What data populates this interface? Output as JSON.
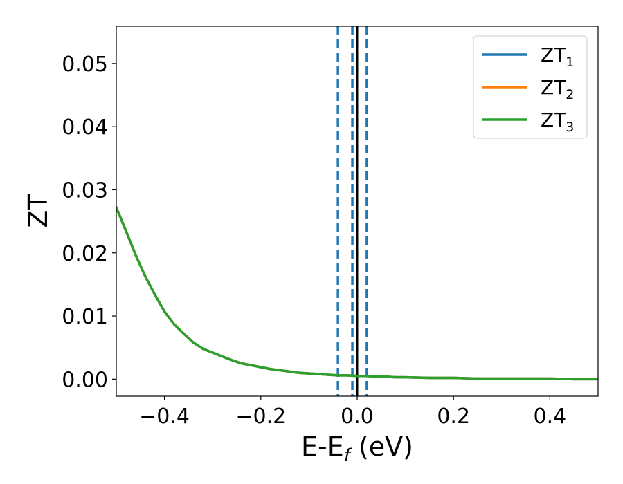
{
  "chart_data": {
    "type": "line",
    "xlabel": "E-E",
    "xlabel_sub": "f",
    "xlabel_unit": " (eV)",
    "ylabel": "ZT",
    "xlim": [
      -0.5,
      0.5
    ],
    "ylim": [
      -0.0027,
      0.0559
    ],
    "xticks": [
      -0.4,
      -0.2,
      0.0,
      0.2,
      0.4
    ],
    "xtick_labels": [
      "−0.4",
      "−0.2",
      "0.0",
      "0.2",
      "0.4"
    ],
    "yticks": [
      0.0,
      0.01,
      0.02,
      0.03,
      0.04,
      0.05
    ],
    "ytick_labels": [
      "0.00",
      "0.01",
      "0.02",
      "0.03",
      "0.04",
      "0.05"
    ],
    "grid": false,
    "legend_position": "top-right",
    "x": [
      -0.5,
      -0.48,
      -0.46,
      -0.44,
      -0.42,
      -0.4,
      -0.38,
      -0.36,
      -0.34,
      -0.32,
      -0.3,
      -0.28,
      -0.26,
      -0.24,
      -0.22,
      -0.2,
      -0.18,
      -0.16,
      -0.14,
      -0.12,
      -0.1,
      -0.08,
      -0.06,
      -0.04,
      -0.02,
      0.0,
      0.02,
      0.04,
      0.06,
      0.08,
      0.1,
      0.15,
      0.2,
      0.25,
      0.3,
      0.35,
      0.4,
      0.45,
      0.5
    ],
    "series": [
      {
        "base": "ZT",
        "sub": "1",
        "color": "#1f77b4",
        "values": [
          0.0272,
          0.0235,
          0.0197,
          0.0163,
          0.0134,
          0.0107,
          0.0087,
          0.0072,
          0.0058,
          0.0048,
          0.0042,
          0.0036,
          0.003,
          0.0025,
          0.0022,
          0.0019,
          0.0016,
          0.0014,
          0.0012,
          0.001,
          0.0009,
          0.0008,
          0.0007,
          0.0006,
          0.0006,
          0.0005,
          0.0005,
          0.0004,
          0.0004,
          0.0003,
          0.0003,
          0.0002,
          0.0002,
          0.0001,
          0.0001,
          0.0001,
          0.0001,
          0.0,
          0.0
        ]
      },
      {
        "base": "ZT",
        "sub": "2",
        "color": "#ff7f0e",
        "values": [
          0.0272,
          0.0235,
          0.0197,
          0.0163,
          0.0134,
          0.0107,
          0.0087,
          0.0072,
          0.0058,
          0.0048,
          0.0042,
          0.0036,
          0.003,
          0.0025,
          0.0022,
          0.0019,
          0.0016,
          0.0014,
          0.0012,
          0.001,
          0.0009,
          0.0008,
          0.0007,
          0.0006,
          0.0006,
          0.0005,
          0.0005,
          0.0004,
          0.0004,
          0.0003,
          0.0003,
          0.0002,
          0.0002,
          0.0001,
          0.0001,
          0.0001,
          0.0001,
          0.0,
          0.0
        ]
      },
      {
        "base": "ZT",
        "sub": "3",
        "color": "#2ca02c",
        "values": [
          0.0272,
          0.0235,
          0.0197,
          0.0163,
          0.0134,
          0.0107,
          0.0087,
          0.0072,
          0.0058,
          0.0048,
          0.0042,
          0.0036,
          0.003,
          0.0025,
          0.0022,
          0.0019,
          0.0016,
          0.0014,
          0.0012,
          0.001,
          0.0009,
          0.0008,
          0.0007,
          0.0006,
          0.0006,
          0.0005,
          0.0005,
          0.0004,
          0.0004,
          0.0003,
          0.0003,
          0.0002,
          0.0002,
          0.0001,
          0.0001,
          0.0001,
          0.0001,
          0.0,
          0.0
        ]
      }
    ],
    "vlines": [
      {
        "x": -0.04,
        "style": "dashed",
        "color": "#1f77b4"
      },
      {
        "x": -0.01,
        "style": "dashed",
        "color": "#1f77b4"
      },
      {
        "x": 0.0,
        "style": "solid",
        "color": "#000000"
      },
      {
        "x": 0.02,
        "style": "dashed",
        "color": "#1f77b4"
      }
    ]
  }
}
